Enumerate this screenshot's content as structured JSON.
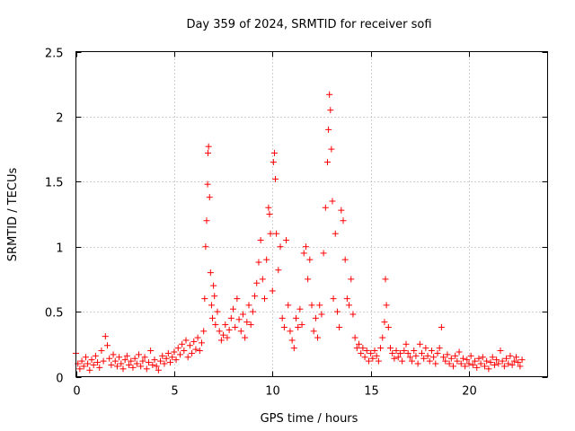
{
  "chart_data": {
    "type": "scatter",
    "title": "Day 359 of 2024, SRMTID for receiver sofi",
    "xlabel": "GPS time / hours",
    "ylabel": "SRMTID / TECUs",
    "xlim": [
      0,
      24
    ],
    "ylim": [
      0,
      2.5
    ],
    "x_ticks": [
      0,
      5,
      10,
      15,
      20
    ],
    "x_tick_labels": [
      "0",
      "5",
      "10",
      "15",
      "20"
    ],
    "y_ticks": [
      0,
      0.5,
      1,
      1.5,
      2,
      2.5
    ],
    "y_tick_labels": [
      "0",
      "0.5",
      "1",
      "1.5",
      "2",
      "2.5"
    ],
    "grid": true,
    "marker": "+",
    "marker_color": "#ff0000",
    "series": [
      {
        "name": "sofi",
        "points": [
          [
            0.0,
            0.18
          ],
          [
            0.1,
            0.1
          ],
          [
            0.2,
            0.06
          ],
          [
            0.3,
            0.12
          ],
          [
            0.4,
            0.08
          ],
          [
            0.5,
            0.15
          ],
          [
            0.6,
            0.1
          ],
          [
            0.7,
            0.05
          ],
          [
            0.8,
            0.13
          ],
          [
            0.9,
            0.09
          ],
          [
            1.0,
            0.16
          ],
          [
            1.1,
            0.11
          ],
          [
            1.2,
            0.07
          ],
          [
            1.3,
            0.2
          ],
          [
            1.4,
            0.12
          ],
          [
            1.5,
            0.31
          ],
          [
            1.6,
            0.24
          ],
          [
            1.7,
            0.14
          ],
          [
            1.8,
            0.09
          ],
          [
            1.9,
            0.17
          ],
          [
            2.0,
            0.12
          ],
          [
            2.1,
            0.08
          ],
          [
            2.2,
            0.15
          ],
          [
            2.3,
            0.1
          ],
          [
            2.4,
            0.06
          ],
          [
            2.5,
            0.13
          ],
          [
            2.6,
            0.16
          ],
          [
            2.7,
            0.09
          ],
          [
            2.8,
            0.12
          ],
          [
            2.9,
            0.07
          ],
          [
            3.0,
            0.14
          ],
          [
            3.1,
            0.1
          ],
          [
            3.2,
            0.17
          ],
          [
            3.3,
            0.08
          ],
          [
            3.4,
            0.12
          ],
          [
            3.5,
            0.15
          ],
          [
            3.6,
            0.06
          ],
          [
            3.7,
            0.11
          ],
          [
            3.8,
            0.2
          ],
          [
            3.9,
            0.09
          ],
          [
            4.0,
            0.13
          ],
          [
            4.1,
            0.08
          ],
          [
            4.2,
            0.05
          ],
          [
            4.3,
            0.12
          ],
          [
            4.4,
            0.16
          ],
          [
            4.5,
            0.1
          ],
          [
            4.6,
            0.14
          ],
          [
            4.7,
            0.18
          ],
          [
            4.8,
            0.11
          ],
          [
            4.9,
            0.15
          ],
          [
            5.0,
            0.19
          ],
          [
            5.1,
            0.13
          ],
          [
            5.2,
            0.22
          ],
          [
            5.3,
            0.17
          ],
          [
            5.4,
            0.25
          ],
          [
            5.5,
            0.2
          ],
          [
            5.6,
            0.28
          ],
          [
            5.7,
            0.15
          ],
          [
            5.8,
            0.24
          ],
          [
            5.9,
            0.18
          ],
          [
            6.0,
            0.27
          ],
          [
            6.1,
            0.21
          ],
          [
            6.2,
            0.3
          ],
          [
            6.3,
            0.2
          ],
          [
            6.4,
            0.26
          ],
          [
            6.5,
            0.35
          ],
          [
            6.55,
            0.6
          ],
          [
            6.6,
            1.0
          ],
          [
            6.65,
            1.2
          ],
          [
            6.7,
            1.48
          ],
          [
            6.72,
            1.72
          ],
          [
            6.75,
            1.77
          ],
          [
            6.8,
            1.38
          ],
          [
            6.85,
            0.8
          ],
          [
            6.9,
            0.55
          ],
          [
            6.95,
            0.45
          ],
          [
            7.0,
            0.7
          ],
          [
            7.05,
            0.62
          ],
          [
            7.1,
            0.4
          ],
          [
            7.2,
            0.5
          ],
          [
            7.3,
            0.35
          ],
          [
            7.4,
            0.28
          ],
          [
            7.5,
            0.32
          ],
          [
            7.6,
            0.4
          ],
          [
            7.7,
            0.3
          ],
          [
            7.8,
            0.36
          ],
          [
            7.9,
            0.45
          ],
          [
            8.0,
            0.52
          ],
          [
            8.1,
            0.38
          ],
          [
            8.2,
            0.6
          ],
          [
            8.3,
            0.44
          ],
          [
            8.4,
            0.35
          ],
          [
            8.5,
            0.48
          ],
          [
            8.6,
            0.3
          ],
          [
            8.7,
            0.42
          ],
          [
            8.8,
            0.55
          ],
          [
            8.9,
            0.4
          ],
          [
            9.0,
            0.5
          ],
          [
            9.1,
            0.62
          ],
          [
            9.2,
            0.72
          ],
          [
            9.3,
            0.88
          ],
          [
            9.4,
            1.05
          ],
          [
            9.5,
            0.75
          ],
          [
            9.6,
            0.6
          ],
          [
            9.7,
            0.9
          ],
          [
            9.8,
            1.3
          ],
          [
            9.85,
            1.25
          ],
          [
            9.9,
            1.1
          ],
          [
            10.0,
            0.66
          ],
          [
            10.05,
            1.65
          ],
          [
            10.1,
            1.72
          ],
          [
            10.15,
            1.52
          ],
          [
            10.2,
            1.1
          ],
          [
            10.3,
            0.82
          ],
          [
            10.4,
            1.0
          ],
          [
            10.5,
            0.45
          ],
          [
            10.6,
            0.38
          ],
          [
            10.7,
            1.05
          ],
          [
            10.8,
            0.55
          ],
          [
            10.9,
            0.35
          ],
          [
            11.0,
            0.28
          ],
          [
            11.1,
            0.22
          ],
          [
            11.2,
            0.45
          ],
          [
            11.3,
            0.38
          ],
          [
            11.4,
            0.52
          ],
          [
            11.5,
            0.4
          ],
          [
            11.6,
            0.95
          ],
          [
            11.7,
            1.0
          ],
          [
            11.8,
            0.75
          ],
          [
            11.9,
            0.9
          ],
          [
            12.0,
            0.55
          ],
          [
            12.1,
            0.35
          ],
          [
            12.2,
            0.45
          ],
          [
            12.3,
            0.3
          ],
          [
            12.4,
            0.55
          ],
          [
            12.5,
            0.48
          ],
          [
            12.6,
            0.95
          ],
          [
            12.7,
            1.3
          ],
          [
            12.8,
            1.65
          ],
          [
            12.85,
            1.9
          ],
          [
            12.9,
            2.17
          ],
          [
            12.95,
            2.05
          ],
          [
            13.0,
            1.75
          ],
          [
            13.05,
            1.35
          ],
          [
            13.1,
            0.6
          ],
          [
            13.2,
            1.1
          ],
          [
            13.3,
            0.5
          ],
          [
            13.4,
            0.38
          ],
          [
            13.5,
            1.28
          ],
          [
            13.6,
            1.2
          ],
          [
            13.7,
            0.9
          ],
          [
            13.8,
            0.6
          ],
          [
            13.9,
            0.55
          ],
          [
            14.0,
            0.75
          ],
          [
            14.1,
            0.48
          ],
          [
            14.2,
            0.3
          ],
          [
            14.3,
            0.22
          ],
          [
            14.4,
            0.25
          ],
          [
            14.5,
            0.18
          ],
          [
            14.6,
            0.22
          ],
          [
            14.7,
            0.15
          ],
          [
            14.8,
            0.2
          ],
          [
            14.9,
            0.12
          ],
          [
            15.0,
            0.18
          ],
          [
            15.1,
            0.14
          ],
          [
            15.2,
            0.2
          ],
          [
            15.3,
            0.16
          ],
          [
            15.4,
            0.12
          ],
          [
            15.5,
            0.22
          ],
          [
            15.6,
            0.3
          ],
          [
            15.7,
            0.42
          ],
          [
            15.75,
            0.75
          ],
          [
            15.8,
            0.55
          ],
          [
            15.9,
            0.38
          ],
          [
            16.0,
            0.22
          ],
          [
            16.1,
            0.18
          ],
          [
            16.2,
            0.14
          ],
          [
            16.3,
            0.2
          ],
          [
            16.4,
            0.15
          ],
          [
            16.5,
            0.18
          ],
          [
            16.6,
            0.12
          ],
          [
            16.7,
            0.2
          ],
          [
            16.8,
            0.25
          ],
          [
            16.9,
            0.18
          ],
          [
            17.0,
            0.15
          ],
          [
            17.1,
            0.12
          ],
          [
            17.2,
            0.2
          ],
          [
            17.3,
            0.16
          ],
          [
            17.4,
            0.1
          ],
          [
            17.5,
            0.25
          ],
          [
            17.6,
            0.18
          ],
          [
            17.7,
            0.14
          ],
          [
            17.8,
            0.22
          ],
          [
            17.9,
            0.16
          ],
          [
            18.0,
            0.12
          ],
          [
            18.1,
            0.2
          ],
          [
            18.2,
            0.15
          ],
          [
            18.3,
            0.1
          ],
          [
            18.4,
            0.18
          ],
          [
            18.5,
            0.22
          ],
          [
            18.6,
            0.38
          ],
          [
            18.7,
            0.15
          ],
          [
            18.8,
            0.12
          ],
          [
            18.9,
            0.17
          ],
          [
            19.0,
            0.1
          ],
          [
            19.1,
            0.14
          ],
          [
            19.2,
            0.08
          ],
          [
            19.3,
            0.16
          ],
          [
            19.4,
            0.12
          ],
          [
            19.5,
            0.19
          ],
          [
            19.6,
            0.1
          ],
          [
            19.7,
            0.14
          ],
          [
            19.8,
            0.08
          ],
          [
            19.9,
            0.13
          ],
          [
            20.0,
            0.1
          ],
          [
            20.1,
            0.16
          ],
          [
            20.2,
            0.09
          ],
          [
            20.3,
            0.12
          ],
          [
            20.4,
            0.07
          ],
          [
            20.5,
            0.14
          ],
          [
            20.6,
            0.1
          ],
          [
            20.7,
            0.15
          ],
          [
            20.8,
            0.08
          ],
          [
            20.9,
            0.12
          ],
          [
            21.0,
            0.06
          ],
          [
            21.1,
            0.11
          ],
          [
            21.2,
            0.15
          ],
          [
            21.3,
            0.09
          ],
          [
            21.4,
            0.13
          ],
          [
            21.5,
            0.1
          ],
          [
            21.6,
            0.2
          ],
          [
            21.7,
            0.12
          ],
          [
            21.8,
            0.08
          ],
          [
            21.9,
            0.14
          ],
          [
            22.0,
            0.1
          ],
          [
            22.1,
            0.16
          ],
          [
            22.2,
            0.09
          ],
          [
            22.3,
            0.12
          ],
          [
            22.4,
            0.15
          ],
          [
            22.5,
            0.11
          ],
          [
            22.6,
            0.08
          ],
          [
            22.7,
            0.13
          ]
        ]
      }
    ]
  }
}
